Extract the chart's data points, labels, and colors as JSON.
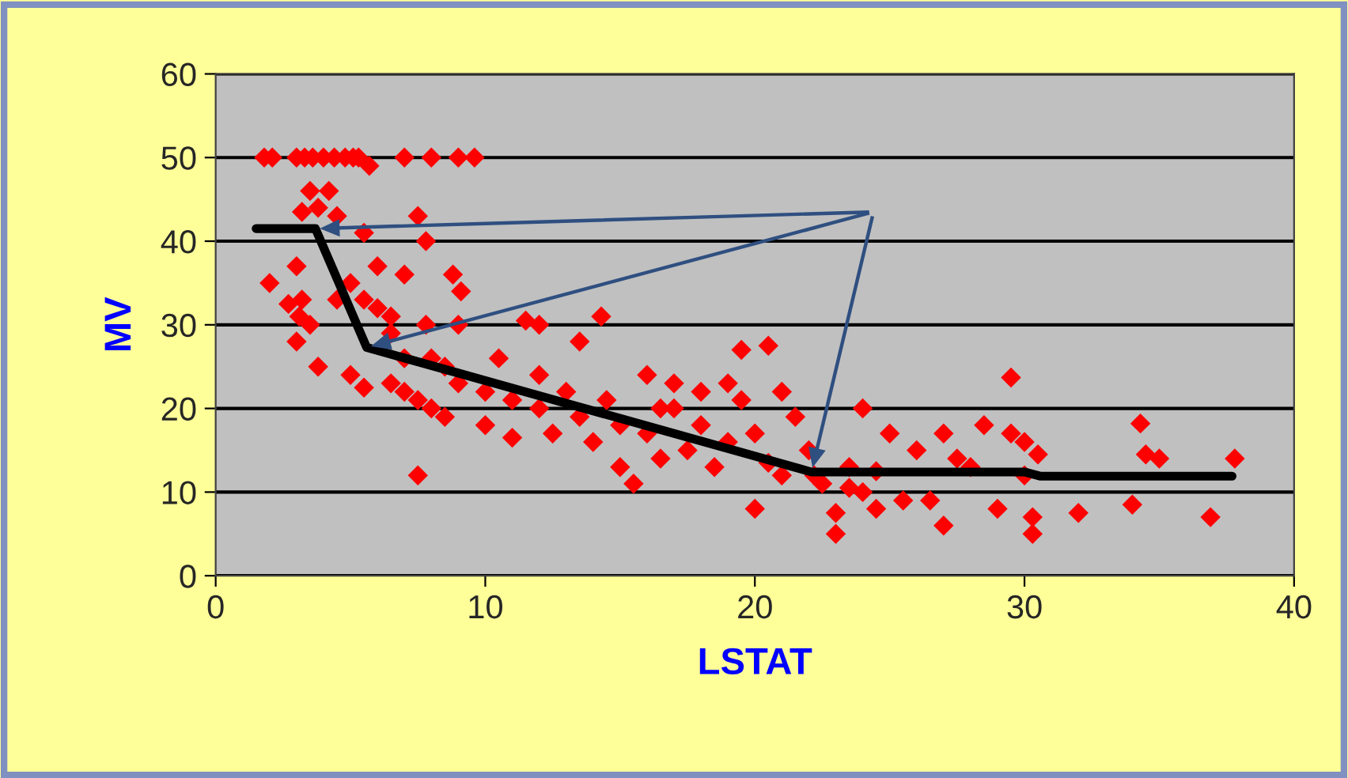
{
  "chart_data": {
    "type": "scatter",
    "xlabel": "LSTAT",
    "ylabel": "MV",
    "xlim": [
      0,
      40
    ],
    "ylim": [
      0,
      60
    ],
    "xticks": [
      0,
      10,
      20,
      30,
      40
    ],
    "yticks": [
      0,
      10,
      20,
      30,
      40,
      50,
      60
    ],
    "grid": "y",
    "legend": false,
    "series": [
      {
        "color": "#ff0000",
        "marker": "diamond",
        "x": [
          1.8,
          2.1,
          3.0,
          3.3,
          3.6,
          4.0,
          4.4,
          4.8,
          5.1,
          5.3,
          5.7,
          7.0,
          8.0,
          9.0,
          9.6,
          3.5,
          4.2,
          3.8,
          3.2,
          4.5,
          7.5,
          7.8,
          2.0,
          3.0,
          3.2,
          2.7,
          3.1,
          3.5,
          3.0,
          3.8,
          4.5,
          5.0,
          5.5,
          6.0,
          6.5,
          7.0,
          7.8,
          8.8,
          9.1,
          9.0,
          8.0,
          11.5,
          12.0,
          14.3,
          13.5,
          20.5,
          19.5,
          5.0,
          5.5,
          6.5,
          7.0,
          7.5,
          8.0,
          8.5,
          7.5,
          9.0,
          10.0,
          10.0,
          11.0,
          11.0,
          12.0,
          12.5,
          13.0,
          13.5,
          14.0,
          14.5,
          15.0,
          15.0,
          15.5,
          16.0,
          16.5,
          17.0,
          17.5,
          18.0,
          18.0,
          18.5,
          19.0,
          19.5,
          20.0,
          20.0,
          20.5,
          21.0,
          21.0,
          21.5,
          22.0,
          22.5,
          23.0,
          23.0,
          23.5,
          24.0,
          24.0,
          24.5,
          24.5,
          25.0,
          25.5,
          26.0,
          26.5,
          27.0,
          27.0,
          27.5,
          28.0,
          28.5,
          29.0,
          29.5,
          29.5,
          30.0,
          30.0,
          30.3,
          30.3,
          30.5,
          32.0,
          34.0,
          34.3,
          34.5,
          35.0,
          36.9,
          37.8,
          5.5,
          6.0,
          6.5,
          7.0,
          10.5,
          8.5,
          12.0,
          16.0,
          17.0,
          19.0,
          16.5,
          22.2,
          23.5
        ],
        "values": [
          50,
          50,
          50,
          50,
          50,
          50,
          50,
          50,
          50,
          50,
          49,
          50,
          50,
          50,
          50,
          46,
          46,
          44,
          43.5,
          43,
          43,
          40,
          35,
          37,
          33,
          32.5,
          31,
          30,
          28,
          25,
          33,
          35,
          33,
          32,
          31,
          36,
          30,
          36,
          34,
          30,
          26,
          30.5,
          30,
          31,
          28,
          27.5,
          27,
          24,
          22.5,
          23,
          22,
          21,
          20,
          19,
          12,
          23,
          22,
          18,
          21,
          16.5,
          20,
          17,
          22,
          19,
          16,
          21,
          18,
          13,
          11,
          17,
          14,
          20,
          15,
          22,
          18,
          13,
          16,
          21,
          17,
          8,
          13.5,
          12,
          22,
          19,
          15,
          11,
          7.5,
          5,
          13,
          10,
          20,
          8,
          12.5,
          17,
          9,
          15,
          9,
          17,
          6,
          14,
          13,
          18,
          8,
          17,
          23.7,
          16,
          12,
          7,
          5,
          14.5,
          7.5,
          8.5,
          18.2,
          14.5,
          14,
          7,
          14,
          41,
          37,
          29,
          26,
          26,
          25,
          24,
          24,
          23,
          23,
          20,
          12,
          10.5
        ]
      },
      {
        "type": "line",
        "color": "#000000",
        "marker": "none",
        "line_style": "solid",
        "x": [
          1.5,
          3.7,
          5.6,
          22.1,
          30.0,
          30.6,
          37.7
        ],
        "values": [
          41.5,
          41.5,
          27.3,
          12.4,
          12.4,
          11.9,
          11.9
        ]
      }
    ]
  }
}
